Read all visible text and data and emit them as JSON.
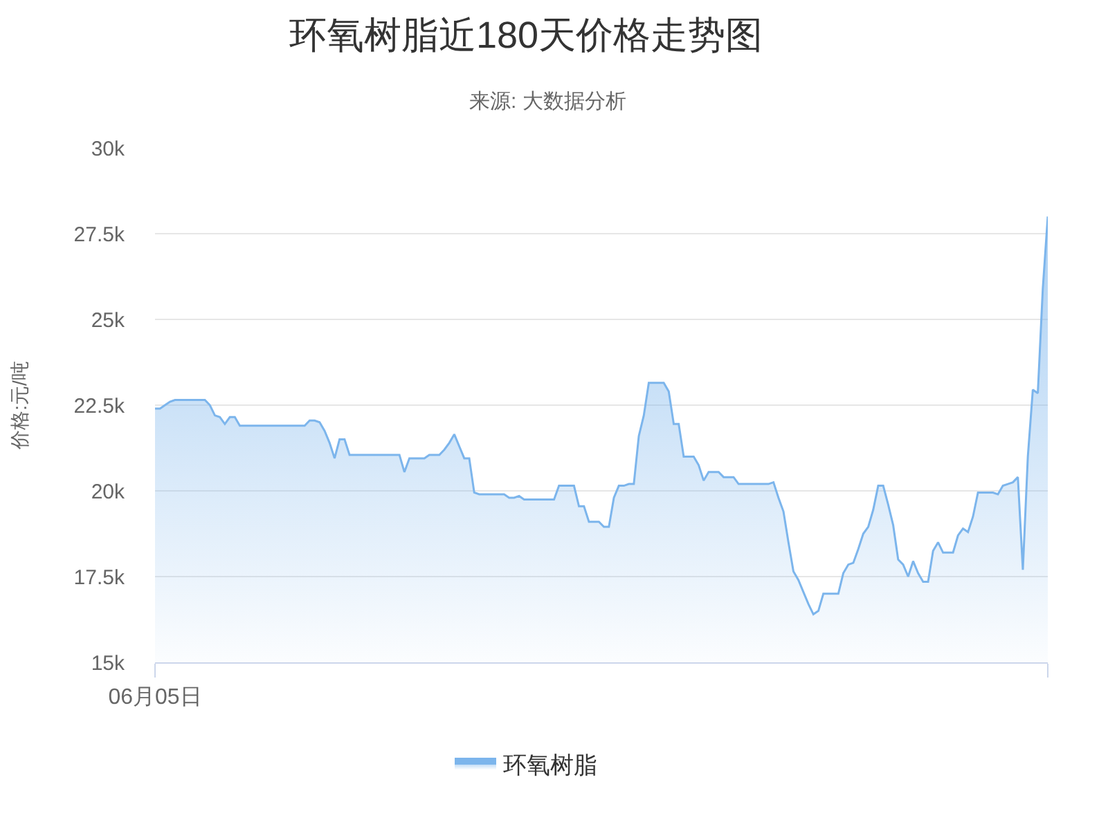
{
  "chart_data": {
    "type": "area",
    "title": "环氧树脂近180天价格走势图",
    "subtitle": "来源: 大数据分析",
    "ylabel": "价格:元/吨",
    "categories": [
      "06月05日",
      null,
      null,
      null,
      null,
      null,
      null,
      null,
      null,
      null,
      null,
      null,
      null,
      null,
      null,
      null,
      null,
      null,
      null,
      null,
      null,
      null,
      null,
      null,
      null,
      null,
      null,
      null,
      null,
      null,
      null,
      null,
      null,
      null,
      null,
      null,
      null,
      null,
      null,
      null,
      null,
      null,
      null,
      null,
      null,
      null,
      null,
      null,
      null,
      null,
      null,
      null,
      null,
      null,
      null,
      null,
      null,
      null,
      null,
      null,
      null,
      null,
      null,
      null,
      null,
      null,
      null,
      null,
      null,
      null,
      null,
      null,
      null,
      null,
      null,
      null,
      null,
      null,
      null,
      null,
      null,
      null,
      null,
      null,
      null,
      null,
      null,
      null,
      null,
      null,
      null,
      null,
      null,
      null,
      null,
      null,
      null,
      null,
      null,
      null,
      null,
      null,
      null,
      null,
      null,
      null,
      null,
      null,
      null,
      null,
      null,
      null,
      null,
      null,
      null,
      null,
      null,
      null,
      null,
      null,
      null,
      null,
      null,
      null,
      null,
      null,
      null,
      null,
      null,
      null,
      null,
      null,
      null,
      null,
      null,
      null,
      null,
      null,
      null,
      null,
      null,
      null,
      null,
      null,
      null,
      null,
      null,
      null,
      null,
      null,
      null,
      null,
      null,
      null,
      null,
      null,
      null,
      null,
      null,
      null,
      null,
      null,
      null,
      null,
      null,
      null,
      null,
      null,
      null,
      null,
      null,
      null,
      null,
      null,
      null,
      null,
      null,
      null,
      null,
      null
    ],
    "series": [
      {
        "name": "环氧树脂",
        "color": "#7cb5ec",
        "values": [
          22400,
          22400,
          22500,
          22600,
          22650,
          22650,
          22650,
          22650,
          22650,
          22650,
          22650,
          22500,
          22200,
          22150,
          21950,
          22150,
          22150,
          21900,
          21900,
          21900,
          21900,
          21900,
          21900,
          21900,
          21900,
          21900,
          21900,
          21900,
          21900,
          21900,
          21900,
          22050,
          22050,
          22000,
          21750,
          21400,
          20950,
          21500,
          21500,
          21050,
          21050,
          21050,
          21050,
          21050,
          21050,
          21050,
          21050,
          21050,
          21050,
          21050,
          20550,
          20950,
          20950,
          20950,
          20950,
          21050,
          21050,
          21050,
          21200,
          21400,
          21650,
          21300,
          20950,
          20950,
          19950,
          19900,
          19900,
          19900,
          19900,
          19900,
          19900,
          19800,
          19800,
          19850,
          19750,
          19750,
          19750,
          19750,
          19750,
          19750,
          19750,
          20150,
          20150,
          20150,
          20150,
          19550,
          19550,
          19100,
          19100,
          19100,
          18950,
          18950,
          19800,
          20150,
          20150,
          20200,
          20200,
          21600,
          22200,
          23150,
          23150,
          23150,
          23150,
          22900,
          21950,
          21950,
          21000,
          21000,
          21000,
          20750,
          20300,
          20550,
          20550,
          20550,
          20400,
          20400,
          20400,
          20200,
          20200,
          20200,
          20200,
          20200,
          20200,
          20200,
          20250,
          19800,
          19400,
          18500,
          17650,
          17400,
          17050,
          16700,
          16400,
          16500,
          17000,
          17000,
          17000,
          17000,
          17600,
          17850,
          17900,
          18300,
          18750,
          18950,
          19450,
          20150,
          20150,
          19600,
          19000,
          18000,
          17850,
          17500,
          17950,
          17600,
          17350,
          17350,
          18250,
          18500,
          18200,
          18200,
          18200,
          18700,
          18900,
          18800,
          19250,
          19950,
          19950,
          19950,
          19950,
          19900,
          20150,
          20200,
          20250,
          20400,
          17700,
          21000,
          22950,
          22850,
          25900,
          28000
        ]
      }
    ],
    "ylim": [
      15000,
      30000
    ],
    "yticks": [
      {
        "value": 15000,
        "label": "15k"
      },
      {
        "value": 17500,
        "label": "17.5k"
      },
      {
        "value": 20000,
        "label": "20k"
      },
      {
        "value": 22500,
        "label": "22.5k"
      },
      {
        "value": 25000,
        "label": "25k"
      },
      {
        "value": 27500,
        "label": "27.5k"
      },
      {
        "value": 30000,
        "label": "30k"
      }
    ],
    "grid": "y",
    "legend": "bottom"
  }
}
